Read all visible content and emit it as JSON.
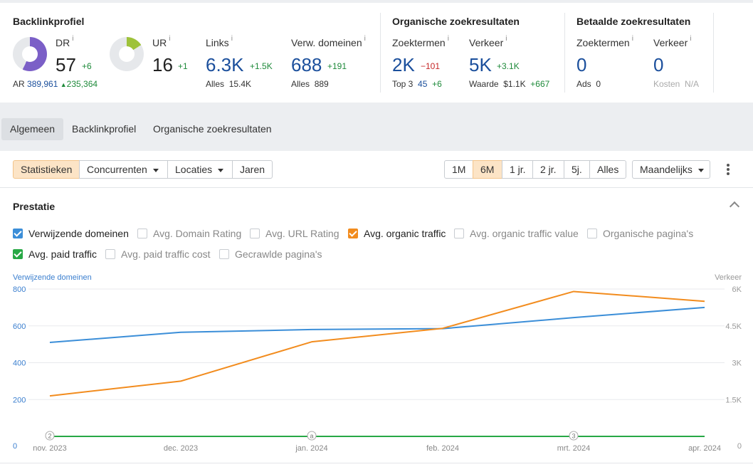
{
  "backlink": {
    "title": "Backlinkprofiel",
    "dr": {
      "label": "DR",
      "info": "i",
      "value": "57",
      "delta": "+6",
      "score": 57,
      "color": "#7b5fc7"
    },
    "ur": {
      "label": "UR",
      "info": "i",
      "value": "16",
      "delta": "+1",
      "score": 16,
      "color": "#9ec23a"
    },
    "ar": {
      "label": "AR",
      "value": "389,961",
      "delta": "235,364"
    },
    "links": {
      "label": "Links",
      "info": "i",
      "value": "6.3K",
      "delta": "+1.5K",
      "sub_label": "Alles",
      "sub_value": "15.4K"
    },
    "domains": {
      "label": "Verw. domeinen",
      "info": "i",
      "value": "688",
      "delta": "+191",
      "sub_label": "Alles",
      "sub_value": "889"
    }
  },
  "organic": {
    "title": "Organische zoekresultaten",
    "keywords": {
      "label": "Zoektermen",
      "info": "i",
      "value": "2K",
      "delta": "−101",
      "sub_label": "Top 3",
      "sub_value": "45",
      "sub_delta": "+6"
    },
    "traffic": {
      "label": "Verkeer",
      "info": "i",
      "value": "5K",
      "delta": "+3.1K",
      "sub_label": "Waarde",
      "sub_value": "$1.1K",
      "sub_delta": "+667"
    }
  },
  "paid": {
    "title": "Betaalde zoekresultaten",
    "keywords": {
      "label": "Zoektermen",
      "info": "i",
      "value": "0",
      "sub_label": "Ads",
      "sub_value": "0"
    },
    "traffic": {
      "label": "Verkeer",
      "info": "i",
      "value": "0",
      "sub_label": "Kosten",
      "sub_value": "N/A"
    }
  },
  "tabs": [
    "Algemeen",
    "Backlinkprofiel",
    "Organische zoekresultaten"
  ],
  "toolbar": {
    "left": [
      "Statistieken",
      "Concurrenten",
      "Locaties",
      "Jaren"
    ],
    "ranges": [
      "1M",
      "6M",
      "1 jr.",
      "2 jr.",
      "5j.",
      "Alles"
    ],
    "interval": "Maandelijks"
  },
  "section_title": "Prestatie",
  "checkboxes": [
    {
      "label": "Verwijzende domeinen",
      "checked": true,
      "color": "#3b8ed8"
    },
    {
      "label": "Avg. Domain Rating",
      "checked": false
    },
    {
      "label": "Avg. URL Rating",
      "checked": false
    },
    {
      "label": "Avg. organic traffic",
      "checked": true,
      "color": "#f28c1e"
    },
    {
      "label": "Avg. organic traffic value",
      "checked": false
    },
    {
      "label": "Organische pagina's",
      "checked": false
    },
    {
      "label": "Avg. paid traffic",
      "checked": true,
      "color": "#27a845"
    },
    {
      "label": "Avg. paid traffic cost",
      "checked": false
    },
    {
      "label": "Gecrawlde pagina's",
      "checked": false
    }
  ],
  "chart_data": {
    "type": "line",
    "left_axis_title": "Verwijzende domeinen",
    "right_axis_title": "Verkeer",
    "x": [
      "nov. 2023",
      "dec. 2023",
      "jan. 2024",
      "feb. 2024",
      "mrt. 2024",
      "apr. 2024"
    ],
    "left_ticks": [
      "0",
      "200",
      "400",
      "600",
      "800"
    ],
    "right_ticks": [
      "0",
      "1.5K",
      "3K",
      "4.5K",
      "6K"
    ],
    "left_range": [
      0,
      800
    ],
    "right_range": [
      0,
      6000
    ],
    "grid": true,
    "annotations": [
      {
        "x_index": 0,
        "label": "2"
      },
      {
        "x_index": 2,
        "label": "a"
      },
      {
        "x_index": 4,
        "label": "3"
      }
    ],
    "series": [
      {
        "name": "Verwijzende domeinen",
        "axis": "left",
        "color": "#3b8ed8",
        "values": [
          510,
          565,
          580,
          585,
          645,
          700
        ]
      },
      {
        "name": "Avg. organic traffic",
        "axis": "right",
        "color": "#f28c1e",
        "values": [
          1650,
          2250,
          3850,
          4400,
          5900,
          5500
        ]
      },
      {
        "name": "Avg. paid traffic",
        "axis": "right",
        "color": "#27a845",
        "values": [
          0,
          0,
          0,
          0,
          0,
          0
        ]
      }
    ]
  }
}
